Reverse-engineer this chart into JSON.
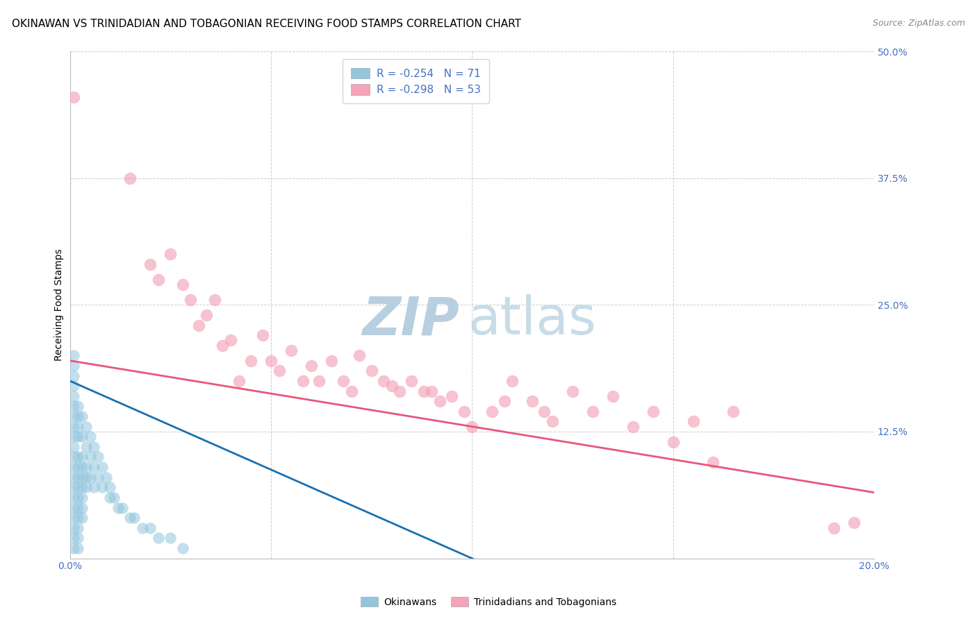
{
  "title": "OKINAWAN VS TRINIDADIAN AND TOBAGONIAN RECEIVING FOOD STAMPS CORRELATION CHART",
  "source": "Source: ZipAtlas.com",
  "ylabel": "Receiving Food Stamps",
  "xmin": 0.0,
  "xmax": 0.2,
  "ymin": 0.0,
  "ymax": 0.5,
  "yticks": [
    0.0,
    0.125,
    0.25,
    0.375,
    0.5
  ],
  "ytick_labels": [
    "",
    "12.5%",
    "25.0%",
    "37.5%",
    "50.0%"
  ],
  "xtick_positions": [
    0.0,
    0.05,
    0.1,
    0.15,
    0.2
  ],
  "legend_r_blue": "R = -0.254",
  "legend_n_blue": "N = 71",
  "legend_r_pink": "R = -0.298",
  "legend_n_pink": "N = 53",
  "blue_color": "#92c5de",
  "pink_color": "#f4a3b8",
  "blue_line_color": "#1a6faf",
  "pink_line_color": "#e8567a",
  "watermark_zip_color": "#b8cfe0",
  "watermark_atlas_color": "#c8dce8",
  "grid_color": "#cccccc",
  "bg_color": "#ffffff",
  "tick_color": "#4472c4",
  "title_fontsize": 11,
  "axis_label_fontsize": 10,
  "tick_fontsize": 10,
  "legend_fontsize": 11,
  "blue_line_x0": 0.0,
  "blue_line_y0": 0.175,
  "blue_line_x1": 0.1,
  "blue_line_y1": 0.0,
  "pink_line_x0": 0.0,
  "pink_line_y0": 0.195,
  "pink_line_x1": 0.2,
  "pink_line_y1": 0.065,
  "blue_scatter_x": [
    0.001,
    0.001,
    0.001,
    0.001,
    0.001,
    0.001,
    0.001,
    0.001,
    0.001,
    0.001,
    0.001,
    0.001,
    0.001,
    0.001,
    0.001,
    0.001,
    0.001,
    0.001,
    0.001,
    0.001,
    0.002,
    0.002,
    0.002,
    0.002,
    0.002,
    0.002,
    0.002,
    0.002,
    0.002,
    0.002,
    0.002,
    0.002,
    0.002,
    0.002,
    0.003,
    0.003,
    0.003,
    0.003,
    0.003,
    0.003,
    0.003,
    0.003,
    0.003,
    0.004,
    0.004,
    0.004,
    0.004,
    0.004,
    0.005,
    0.005,
    0.005,
    0.006,
    0.006,
    0.006,
    0.007,
    0.007,
    0.008,
    0.008,
    0.009,
    0.01,
    0.01,
    0.011,
    0.012,
    0.013,
    0.015,
    0.016,
    0.018,
    0.02,
    0.022,
    0.025,
    0.028
  ],
  "blue_scatter_y": [
    0.14,
    0.12,
    0.1,
    0.09,
    0.08,
    0.07,
    0.06,
    0.05,
    0.04,
    0.03,
    0.02,
    0.01,
    0.15,
    0.11,
    0.13,
    0.16,
    0.17,
    0.18,
    0.19,
    0.2,
    0.14,
    0.12,
    0.1,
    0.09,
    0.08,
    0.07,
    0.06,
    0.05,
    0.04,
    0.03,
    0.02,
    0.01,
    0.13,
    0.15,
    0.14,
    0.12,
    0.1,
    0.09,
    0.08,
    0.07,
    0.06,
    0.05,
    0.04,
    0.13,
    0.11,
    0.09,
    0.08,
    0.07,
    0.12,
    0.1,
    0.08,
    0.11,
    0.09,
    0.07,
    0.1,
    0.08,
    0.09,
    0.07,
    0.08,
    0.07,
    0.06,
    0.06,
    0.05,
    0.05,
    0.04,
    0.04,
    0.03,
    0.03,
    0.02,
    0.02,
    0.01
  ],
  "pink_scatter_x": [
    0.001,
    0.015,
    0.02,
    0.022,
    0.025,
    0.028,
    0.03,
    0.032,
    0.034,
    0.036,
    0.038,
    0.04,
    0.042,
    0.045,
    0.048,
    0.05,
    0.052,
    0.055,
    0.058,
    0.06,
    0.062,
    0.065,
    0.068,
    0.07,
    0.072,
    0.075,
    0.078,
    0.08,
    0.082,
    0.085,
    0.088,
    0.09,
    0.092,
    0.095,
    0.098,
    0.1,
    0.105,
    0.108,
    0.11,
    0.115,
    0.118,
    0.12,
    0.125,
    0.13,
    0.135,
    0.14,
    0.145,
    0.15,
    0.155,
    0.16,
    0.165,
    0.19,
    0.195
  ],
  "pink_scatter_y": [
    0.455,
    0.375,
    0.29,
    0.275,
    0.3,
    0.27,
    0.255,
    0.23,
    0.24,
    0.255,
    0.21,
    0.215,
    0.175,
    0.195,
    0.22,
    0.195,
    0.185,
    0.205,
    0.175,
    0.19,
    0.175,
    0.195,
    0.175,
    0.165,
    0.2,
    0.185,
    0.175,
    0.17,
    0.165,
    0.175,
    0.165,
    0.165,
    0.155,
    0.16,
    0.145,
    0.13,
    0.145,
    0.155,
    0.175,
    0.155,
    0.145,
    0.135,
    0.165,
    0.145,
    0.16,
    0.13,
    0.145,
    0.115,
    0.135,
    0.095,
    0.145,
    0.03,
    0.035
  ]
}
